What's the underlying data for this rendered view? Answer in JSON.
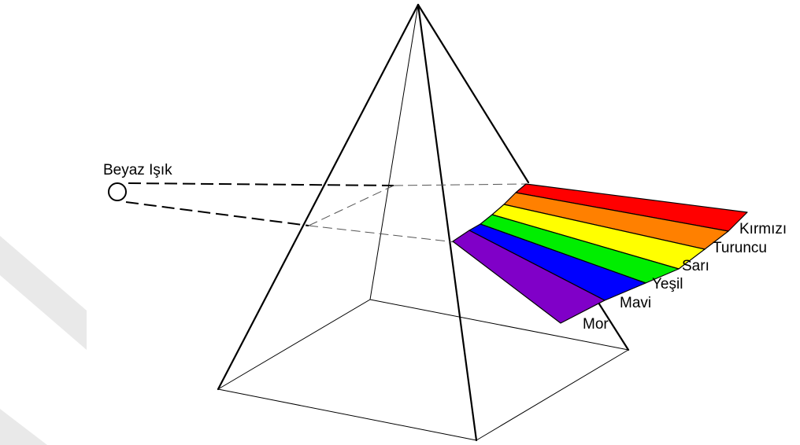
{
  "light_source": {
    "label": "Beyaz Işık"
  },
  "spectrum": [
    {
      "label": "Kırmızı",
      "color": "#ff0000"
    },
    {
      "label": "Turuncu",
      "color": "#ff8000"
    },
    {
      "label": "Sarı",
      "color": "#ffff00"
    },
    {
      "label": "Yeşil",
      "color": "#00ee00"
    },
    {
      "label": "Mavi",
      "color": "#0000ff"
    },
    {
      "label": "Mor",
      "color": "#8000c8"
    }
  ]
}
